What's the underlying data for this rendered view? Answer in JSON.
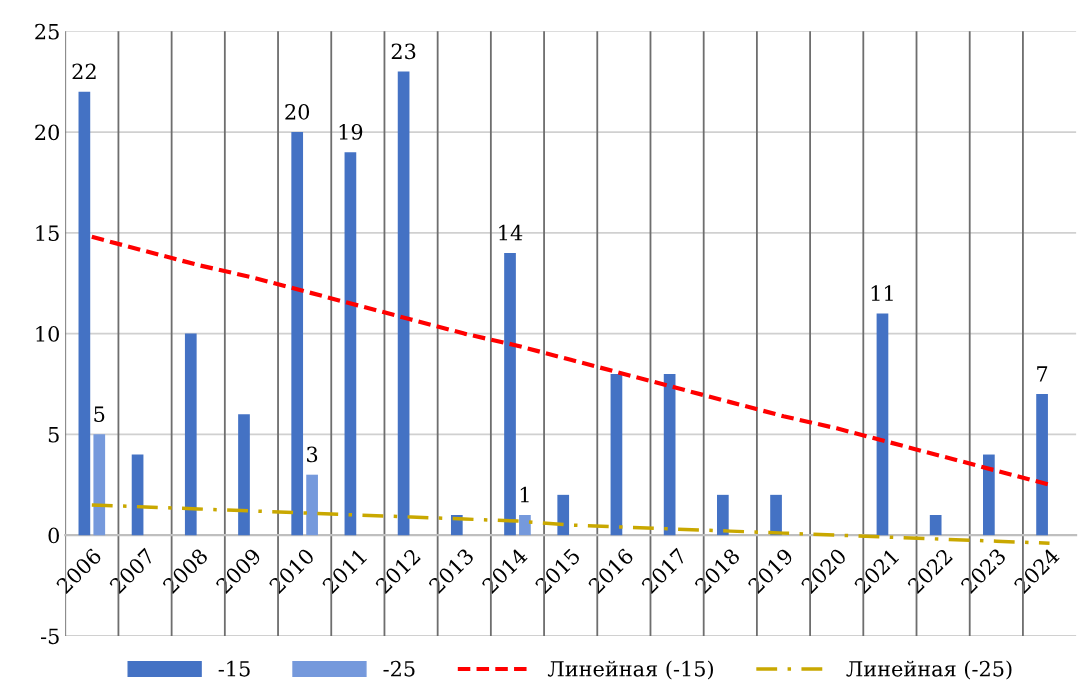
{
  "chart_data": {
    "type": "bar",
    "categories": [
      "2006",
      "2007",
      "2008",
      "2009",
      "2010",
      "2011",
      "2012",
      "2013",
      "2014",
      "2015",
      "2016",
      "2017",
      "2018",
      "2019",
      "2020",
      "2021",
      "2022",
      "2023",
      "2024"
    ],
    "series": [
      {
        "name": "-15",
        "color": "#4472c4",
        "values": [
          22,
          4,
          10,
          6,
          20,
          19,
          23,
          1,
          14,
          2,
          8,
          8,
          2,
          2,
          null,
          11,
          1,
          4,
          7
        ],
        "value_labels": [
          "22",
          null,
          null,
          null,
          "20",
          "19",
          "23",
          null,
          "14",
          null,
          null,
          null,
          null,
          null,
          null,
          "11",
          null,
          null,
          "7"
        ]
      },
      {
        "name": "-25",
        "color": "#7599dc",
        "values": [
          5,
          null,
          null,
          null,
          3,
          null,
          null,
          null,
          1,
          null,
          null,
          null,
          null,
          null,
          null,
          null,
          null,
          null,
          null
        ],
        "value_labels": [
          "5",
          null,
          null,
          null,
          "3",
          null,
          null,
          null,
          "1",
          null,
          null,
          null,
          null,
          null,
          null,
          null,
          null,
          null,
          null
        ]
      },
      {
        "name": "Линейная (-15)",
        "type": "line",
        "color": "#ff0000",
        "line_style": "dashed",
        "values": [
          14.8,
          14.1,
          13.4,
          12.8,
          12.1,
          11.4,
          10.7,
          10.0,
          9.4,
          8.7,
          8.0,
          7.3,
          6.6,
          5.9,
          5.3,
          4.6,
          3.9,
          3.2,
          2.5
        ]
      },
      {
        "name": "Линейная (-25)",
        "type": "line",
        "color": "#c9a800",
        "line_style": "dashdot",
        "values": [
          1.5,
          1.4,
          1.3,
          1.2,
          1.1,
          1.0,
          0.9,
          0.8,
          0.7,
          0.5,
          0.4,
          0.3,
          0.2,
          0.1,
          0.0,
          -0.1,
          -0.2,
          -0.3,
          -0.4
        ]
      }
    ],
    "ylim": [
      -5,
      25
    ],
    "yticks": [
      -5,
      0,
      5,
      10,
      15,
      20,
      25
    ],
    "grid": true,
    "legend": "bottom",
    "marker": "none"
  }
}
